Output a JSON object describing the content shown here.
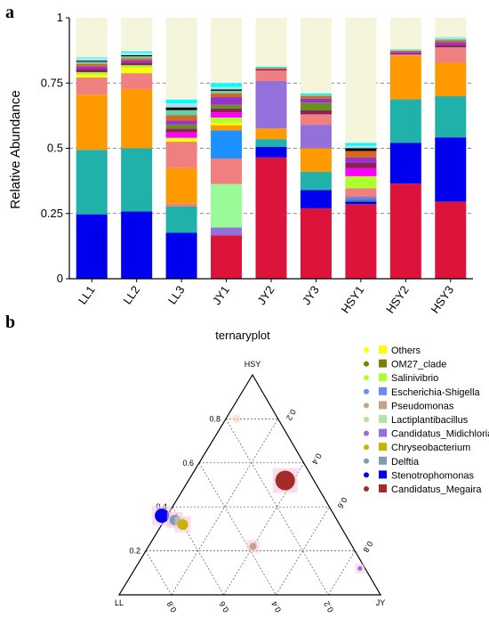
{
  "panels": {
    "a_label": "a",
    "b_label": "b"
  },
  "chart_data": [
    {
      "type": "bar",
      "stacked": true,
      "ylabel": "Relative Abundance",
      "ylim": [
        0,
        1
      ],
      "yticks": [
        "0",
        "0.25",
        "0.5",
        "0.75",
        "1"
      ],
      "grid": "dashed horizontal at 0.25, 0.5, 0.75",
      "categories": [
        "LL1",
        "LL2",
        "LL3",
        "JY1",
        "JY2",
        "JY3",
        "HSY1",
        "HSY2",
        "HSY3"
      ],
      "series": [
        {
          "color": "#dc143c",
          "values": [
            0,
            0,
            0,
            0.17,
            0.46,
            0.27,
            0.28,
            0.35,
            0.3
          ]
        },
        {
          "color": "#0000ee",
          "values": [
            0.245,
            0.255,
            0.175,
            0,
            0.04,
            0.07,
            0.01,
            0.15,
            0.25
          ]
        },
        {
          "color": "#3a82b0",
          "values": [
            0,
            0,
            0,
            0,
            0,
            0,
            0.01,
            0,
            0
          ]
        },
        {
          "color": "#9370db",
          "values": [
            0,
            0,
            0,
            0.03,
            0,
            0,
            0.01,
            0,
            0
          ]
        },
        {
          "color": "#98fb98",
          "values": [
            0,
            0,
            0,
            0.17,
            0,
            0,
            0,
            0,
            0
          ]
        },
        {
          "color": "#20b2aa",
          "values": [
            0.245,
            0.24,
            0.1,
            0,
            0.03,
            0.07,
            0,
            0.16,
            0.16
          ]
        },
        {
          "color": "#f08080",
          "values": [
            0,
            0,
            0.01,
            0.1,
            0,
            0,
            0.03,
            0,
            0
          ]
        },
        {
          "color": "#1e90ff",
          "values": [
            0,
            0,
            0,
            0.11,
            0,
            0,
            0,
            0,
            0
          ]
        },
        {
          "color": "#ff9900",
          "values": [
            0.21,
            0.225,
            0.135,
            0.02,
            0.04,
            0.09,
            0,
            0.16,
            0.13
          ]
        },
        {
          "color": "#f08080",
          "values": [
            0,
            0,
            0.1,
            0,
            0,
            0,
            0,
            0,
            0
          ]
        },
        {
          "color": "#9370db",
          "values": [
            0,
            0,
            0,
            0,
            0.18,
            0.09,
            0,
            0,
            0
          ]
        },
        {
          "color": "#f08080",
          "values": [
            0.065,
            0.06,
            0,
            0,
            0.04,
            0.04,
            0,
            0.005,
            0.06
          ]
        },
        {
          "color": "#ffff00",
          "values": [
            0.01,
            0.02,
            0.01,
            0.01,
            0,
            0,
            0,
            0,
            0
          ]
        },
        {
          "color": "#adff2f",
          "values": [
            0.01,
            0.01,
            0.005,
            0.02,
            0,
            0,
            0.045,
            0,
            0
          ]
        },
        {
          "color": "#ff00ff",
          "values": [
            0,
            0,
            0.02,
            0.02,
            0,
            0,
            0.03,
            0,
            0
          ]
        },
        {
          "color": "#8b2252",
          "values": [
            0.012,
            0.01,
            0.015,
            0.015,
            0.005,
            0.015,
            0.02,
            0.005,
            0.01
          ]
        },
        {
          "color": "#6b8e23",
          "values": [
            0,
            0,
            0.015,
            0.015,
            0,
            0.03,
            0,
            0,
            0
          ]
        },
        {
          "color": "#9932cc",
          "values": [
            0.01,
            0.008,
            0.015,
            0.03,
            0,
            0.015,
            0.02,
            0.005,
            0.01
          ]
        },
        {
          "color": "#d2691e",
          "values": [
            0.01,
            0.008,
            0.02,
            0.015,
            0.005,
            0.01,
            0.025,
            0.005,
            0.008
          ]
        },
        {
          "color": "#66cdaa",
          "values": [
            0.008,
            0.008,
            0.02,
            0.01,
            0,
            0.005,
            0,
            0,
            0.005
          ]
        },
        {
          "color": "#000000",
          "values": [
            0.004,
            0.004,
            0.01,
            0.005,
            0,
            0,
            0.01,
            0,
            0
          ]
        },
        {
          "color": "#b0e0e6",
          "values": [
            0.01,
            0.01,
            0.015,
            0.01,
            0,
            0,
            0.01,
            0.003,
            0.005
          ]
        },
        {
          "color": "#00ffff",
          "values": [
            0.003,
            0.005,
            0.015,
            0.015,
            0.004,
            0.005,
            0.01,
            0.002,
            0.002
          ]
        },
        {
          "color": "#f5f5dc",
          "values": [
            0.15,
            0.127,
            0.31,
            0.255,
            0.186,
            0.29,
            0.47,
            0.115,
            0.075
          ]
        }
      ]
    },
    {
      "type": "scatter",
      "subtype": "ternary",
      "title": "ternaryplot",
      "axes": {
        "top": "HSY",
        "left": "LL",
        "right": "JY"
      },
      "ticks_left_edge": [
        "0.8",
        "0.6",
        "0.4",
        "0.2"
      ],
      "ticks_right_edge": [
        "0.2",
        "0.4",
        "0.6",
        "0.8"
      ],
      "ticks_bottom_edge": [
        "0.8",
        "0.6",
        "0.4",
        "0.2"
      ],
      "legend": [
        {
          "label": "Others",
          "color": "#ffff00"
        },
        {
          "label": "OM27_clade",
          "color": "#808000"
        },
        {
          "label": "Salinivibrio",
          "color": "#adff2f"
        },
        {
          "label": "Escherichia-Shigella",
          "color": "#6a8cf0"
        },
        {
          "label": "Pseudomonas",
          "color": "#c4a484"
        },
        {
          "label": "Lactiplantibacillus",
          "color": "#b5e3a5"
        },
        {
          "label": "Candidatus_Midichloria",
          "color": "#9370db"
        },
        {
          "label": "Chryseobacterium",
          "color": "#c8b400"
        },
        {
          "label": "Delftia",
          "color": "#7b9fb0"
        },
        {
          "label": "Stenotrophomonas",
          "color": "#0000ee"
        },
        {
          "label": "Candidatus_Megaira",
          "color": "#a52a2a"
        }
      ],
      "points": [
        {
          "taxon": "Candidatus_Megaira",
          "LL": 0.11,
          "HSY": 0.52,
          "JY": 0.37,
          "size": 11,
          "color": "#a52a2a"
        },
        {
          "taxon": "Stenotrophomonas",
          "LL": 0.66,
          "HSY": 0.36,
          "JY": -0.02,
          "size": 8,
          "color": "#0000ee"
        },
        {
          "taxon": "Delftia",
          "LL": 0.62,
          "HSY": 0.34,
          "JY": 0.04,
          "size": 6,
          "color": "#7b9fb0"
        },
        {
          "taxon": "Chryseobacterium",
          "LL": 0.6,
          "HSY": 0.32,
          "JY": 0.08,
          "size": 6,
          "color": "#c8b400"
        },
        {
          "taxon": "Pseudomonas",
          "LL": 0.38,
          "HSY": 0.22,
          "JY": 0.4,
          "size": 4,
          "color": "#c4a484"
        },
        {
          "taxon": "Candidatus_Midichloria",
          "LL": 0.02,
          "HSY": 0.12,
          "JY": 0.86,
          "size": 2.5,
          "color": "#9370db"
        },
        {
          "taxon": "Others",
          "LL": 0.16,
          "HSY": 0.8,
          "JY": 0.04,
          "size": 1,
          "color": "#ffff00"
        }
      ]
    }
  ]
}
